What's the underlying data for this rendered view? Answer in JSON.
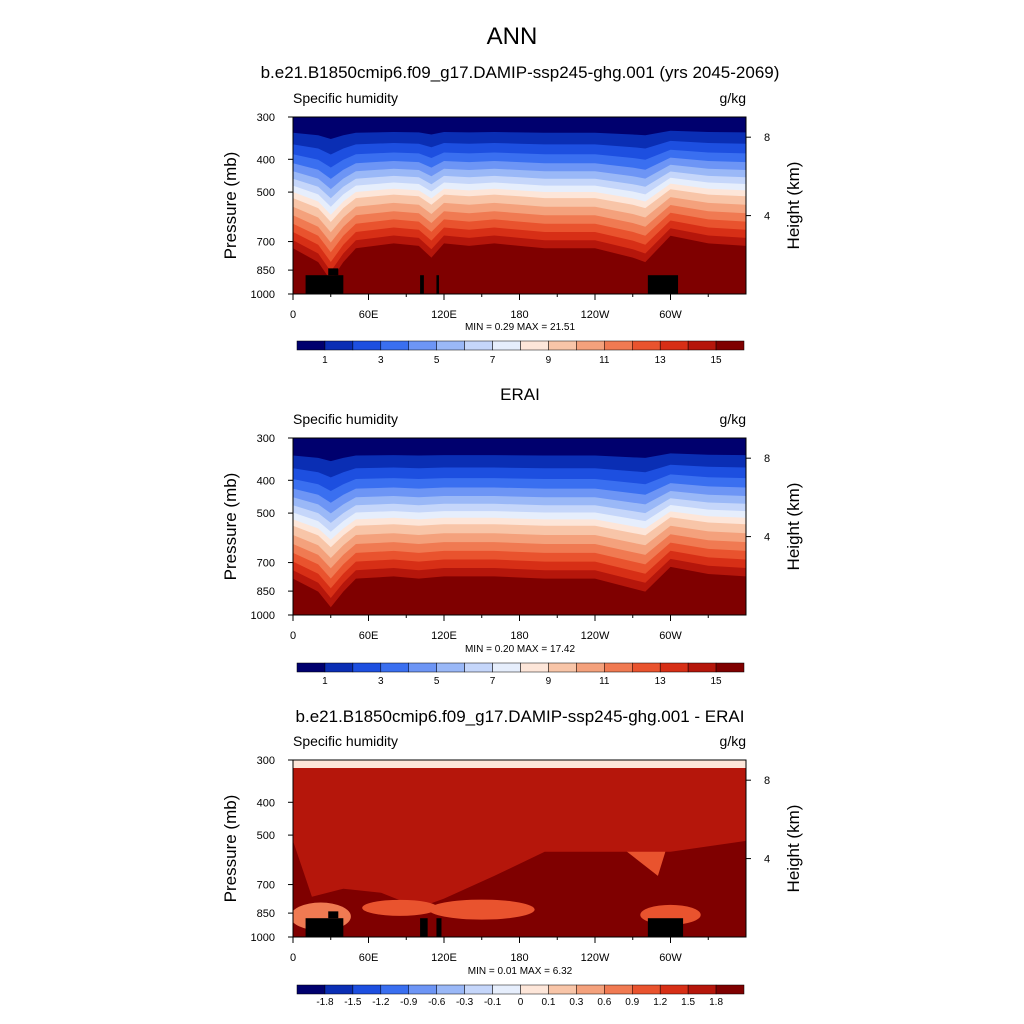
{
  "figure": {
    "title": "ANN"
  },
  "colors": {
    "abs_levels": [
      "#00006e",
      "#0a2eb4",
      "#1d4fe0",
      "#3a6ff0",
      "#6d95f5",
      "#9ab8f7",
      "#c5d6fa",
      "#e6eefc",
      "#fde6d9",
      "#f8c5a8",
      "#f4a17c",
      "#f07a52",
      "#e9532e",
      "#d72f16",
      "#b5160b",
      "#7f0000"
    ],
    "diff_levels": [
      "#00006e",
      "#0a2eb4",
      "#1d4fe0",
      "#3a6ff0",
      "#6d95f5",
      "#9ab8f7",
      "#c5d6fa",
      "#e6eefc",
      "#fde6d9",
      "#f8c5a8",
      "#f4a17c",
      "#f07a52",
      "#e9532e",
      "#d72f16",
      "#b5160b",
      "#7f0000"
    ],
    "land_mask": "#000000"
  },
  "chart_data": [
    {
      "type": "heatmap",
      "title": "b.e21.B1850cmip6.f09_g17.DAMIP-ssp245-ghg.001 (yrs 2045-2069)",
      "left_label": "Specific humidity",
      "right_label": "g/kg",
      "ylabel": "Pressure (mb)",
      "y2label": "Height (km)",
      "y_ticks": [
        "300",
        "400",
        "500",
        "700",
        "850",
        "1000"
      ],
      "y_tick_values": [
        300,
        400,
        500,
        700,
        850,
        1000
      ],
      "y2_ticks": [
        "8",
        "4"
      ],
      "y2_tick_values_km": [
        8,
        4
      ],
      "x_ticks": [
        "0",
        "60E",
        "120E",
        "180",
        "120W",
        "60W"
      ],
      "x_tick_values": [
        0,
        60,
        120,
        180,
        240,
        300
      ],
      "xlim": [
        0,
        360
      ],
      "stats": "MIN =   0.29  MAX =  21.51",
      "colorbar_labels": [
        "1",
        "3",
        "5",
        "7",
        "9",
        "11",
        "13",
        "15"
      ],
      "colorbar_levels": [
        0.5,
        1,
        1.5,
        2,
        3,
        4,
        5,
        6,
        7,
        8,
        9,
        10,
        11,
        12,
        13,
        14,
        15
      ],
      "surface_q_gkg": 16,
      "moist_top_profile_mb": [
        [
          0,
          660
        ],
        [
          20,
          720
        ],
        [
          30,
          810
        ],
        [
          40,
          720
        ],
        [
          50,
          660
        ],
        [
          80,
          640
        ],
        [
          100,
          650
        ],
        [
          110,
          700
        ],
        [
          120,
          640
        ],
        [
          140,
          650
        ],
        [
          160,
          640
        ],
        [
          180,
          650
        ],
        [
          200,
          660
        ],
        [
          240,
          660
        ],
        [
          270,
          700
        ],
        [
          280,
          720
        ],
        [
          300,
          610
        ],
        [
          330,
          640
        ],
        [
          360,
          650
        ]
      ],
      "land_blocks": [
        [
          10,
          40,
          880,
          1000
        ],
        [
          28,
          36,
          840,
          880
        ],
        [
          101,
          104,
          880,
          1000
        ],
        [
          114,
          116,
          880,
          1000
        ],
        [
          282,
          306,
          880,
          1000
        ]
      ]
    },
    {
      "type": "heatmap",
      "title": "ERAI",
      "left_label": "Specific humidity",
      "right_label": "g/kg",
      "ylabel": "Pressure (mb)",
      "y2label": "Height (km)",
      "y_ticks": [
        "300",
        "400",
        "500",
        "700",
        "850",
        "1000"
      ],
      "y_tick_values": [
        300,
        400,
        500,
        700,
        850,
        1000
      ],
      "y2_ticks": [
        "8",
        "4"
      ],
      "y2_tick_values_km": [
        8,
        4
      ],
      "x_ticks": [
        "0",
        "60E",
        "120E",
        "180",
        "120W",
        "60W"
      ],
      "x_tick_values": [
        0,
        60,
        120,
        180,
        240,
        300
      ],
      "xlim": [
        0,
        360
      ],
      "stats": "MIN =   0.20  MAX =  17.42",
      "colorbar_labels": [
        "1",
        "3",
        "5",
        "7",
        "9",
        "11",
        "13",
        "15"
      ],
      "colorbar_levels": [
        0.5,
        1,
        1.5,
        2,
        3,
        4,
        5,
        6,
        7,
        8,
        9,
        10,
        11,
        12,
        13,
        14,
        15
      ],
      "surface_q_gkg": 14,
      "moist_top_profile_mb": [
        [
          0,
          700
        ],
        [
          20,
          760
        ],
        [
          30,
          840
        ],
        [
          40,
          760
        ],
        [
          50,
          700
        ],
        [
          80,
          690
        ],
        [
          100,
          700
        ],
        [
          120,
          690
        ],
        [
          160,
          690
        ],
        [
          200,
          700
        ],
        [
          240,
          700
        ],
        [
          280,
          760
        ],
        [
          300,
          650
        ],
        [
          330,
          680
        ],
        [
          360,
          690
        ]
      ],
      "land_blocks": []
    },
    {
      "type": "heatmap",
      "title": "b.e21.B1850cmip6.f09_g17.DAMIP-ssp245-ghg.001 - ERAI",
      "left_label": "Specific humidity",
      "right_label": "g/kg",
      "ylabel": "Pressure (mb)",
      "y2label": "Height (km)",
      "y_ticks": [
        "300",
        "400",
        "500",
        "700",
        "850",
        "1000"
      ],
      "y_tick_values": [
        300,
        400,
        500,
        700,
        850,
        1000
      ],
      "y2_ticks": [
        "8",
        "4"
      ],
      "y2_tick_values_km": [
        8,
        4
      ],
      "x_ticks": [
        "0",
        "60E",
        "120E",
        "180",
        "120W",
        "60W"
      ],
      "x_tick_values": [
        0,
        60,
        120,
        180,
        240,
        300
      ],
      "xlim": [
        0,
        360
      ],
      "stats": "MIN =   0.01  MAX =   6.32",
      "colorbar_labels": [
        "-1.8",
        "-1.5",
        "-1.2",
        "-0.9",
        "-0.6",
        "-0.3",
        "-0.1",
        "0",
        "0.1",
        "0.3",
        "0.6",
        "0.9",
        "1.2",
        "1.5",
        "1.8"
      ],
      "colorbar_levels": [
        -1.8,
        -1.5,
        -1.2,
        -0.9,
        -0.6,
        -0.3,
        -0.1,
        0,
        0.1,
        0.3,
        0.6,
        0.9,
        1.2,
        1.5,
        1.8
      ],
      "land_blocks": [
        [
          10,
          40,
          880,
          1000
        ],
        [
          28,
          36,
          840,
          880
        ],
        [
          101,
          107,
          880,
          1000
        ],
        [
          114,
          118,
          880,
          1000
        ],
        [
          282,
          310,
          880,
          1000
        ]
      ]
    }
  ]
}
